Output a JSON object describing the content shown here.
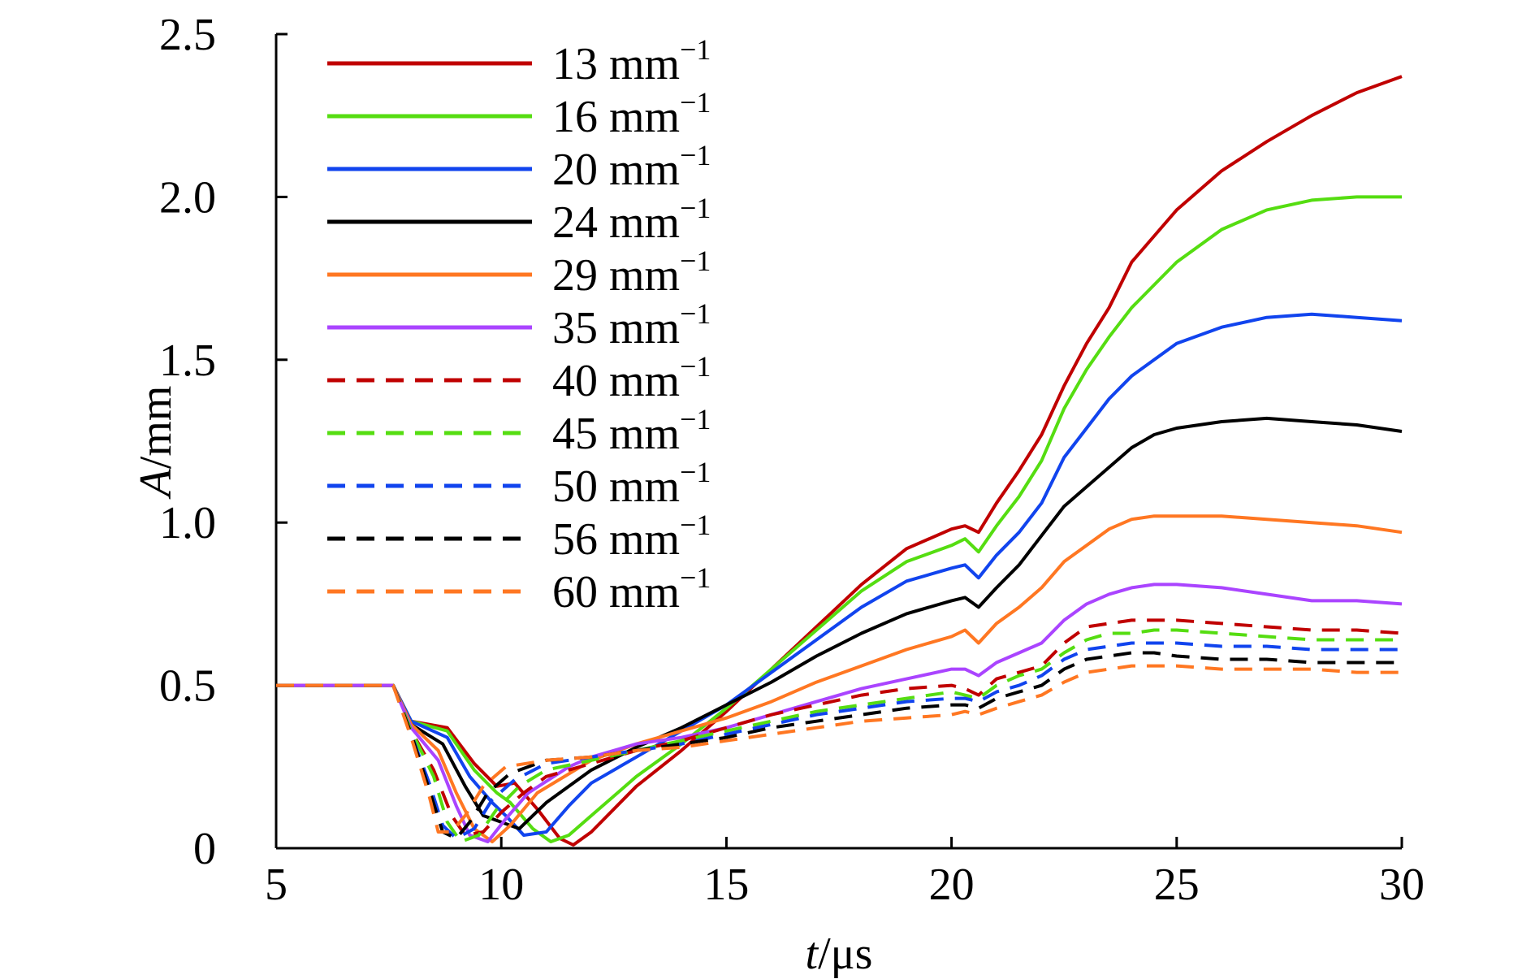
{
  "chart_data": {
    "type": "line",
    "xlabel": {
      "var": "t",
      "unit": "/μs"
    },
    "ylabel": {
      "var": "A",
      "unit": "/mm"
    },
    "xlim": [
      5,
      30
    ],
    "ylim": [
      0,
      2.5
    ],
    "xticks": [
      "5",
      "10",
      "15",
      "20",
      "25",
      "30"
    ],
    "yticks": [
      "0",
      "0.5",
      "1.0",
      "1.5",
      "2.0",
      "2.5"
    ],
    "legend_position": "top-left",
    "grid": false,
    "series": [
      {
        "name": "13 mm",
        "exp": "−1",
        "color": "#c00000",
        "dash": "solid",
        "x": [
          5,
          7.6,
          8,
          8.8,
          9.4,
          9.9,
          10.3,
          10.8,
          11.3,
          11.6,
          12,
          13,
          14,
          15,
          16,
          17,
          18,
          19,
          20,
          20.3,
          20.6,
          21,
          21.5,
          22,
          22.5,
          23,
          23.5,
          24,
          24.5,
          25,
          26,
          27,
          28,
          29,
          30
        ],
        "y": [
          0.5,
          0.5,
          0.39,
          0.37,
          0.26,
          0.19,
          0.2,
          0.12,
          0.03,
          0.01,
          0.05,
          0.19,
          0.3,
          0.42,
          0.55,
          0.68,
          0.81,
          0.92,
          0.98,
          0.99,
          0.97,
          1.06,
          1.16,
          1.27,
          1.42,
          1.55,
          1.66,
          1.8,
          1.88,
          1.96,
          2.08,
          2.17,
          2.25,
          2.32,
          2.37
        ]
      },
      {
        "name": "16 mm",
        "exp": "−1",
        "color": "#55dd11",
        "dash": "solid",
        "x": [
          5,
          7.6,
          8,
          8.8,
          9.4,
          9.9,
          10.2,
          10.7,
          11.1,
          11.5,
          12,
          13,
          14,
          15,
          16,
          17,
          18,
          19,
          20,
          20.3,
          20.6,
          21,
          21.5,
          22,
          22.5,
          23,
          23.5,
          24,
          24.5,
          25,
          26,
          27,
          28,
          29,
          30
        ],
        "y": [
          0.5,
          0.5,
          0.39,
          0.36,
          0.24,
          0.17,
          0.14,
          0.06,
          0.02,
          0.04,
          0.1,
          0.22,
          0.32,
          0.43,
          0.55,
          0.67,
          0.79,
          0.88,
          0.93,
          0.95,
          0.91,
          0.99,
          1.08,
          1.19,
          1.35,
          1.47,
          1.57,
          1.66,
          1.73,
          1.8,
          1.9,
          1.96,
          1.99,
          2.0,
          2.0
        ]
      },
      {
        "name": "20 mm",
        "exp": "−1",
        "color": "#1144ee",
        "dash": "solid",
        "x": [
          5,
          7.6,
          8,
          8.8,
          9.3,
          9.8,
          10.1,
          10.5,
          11,
          11.5,
          12,
          13,
          14,
          15,
          16,
          17,
          18,
          19,
          20,
          20.3,
          20.6,
          21,
          21.5,
          22,
          22.5,
          23,
          23.5,
          24,
          24.5,
          25,
          26,
          27,
          28,
          29,
          30
        ],
        "y": [
          0.5,
          0.5,
          0.39,
          0.34,
          0.22,
          0.14,
          0.1,
          0.04,
          0.05,
          0.13,
          0.2,
          0.28,
          0.36,
          0.44,
          0.54,
          0.64,
          0.74,
          0.82,
          0.86,
          0.87,
          0.83,
          0.9,
          0.97,
          1.06,
          1.2,
          1.29,
          1.38,
          1.45,
          1.5,
          1.55,
          1.6,
          1.63,
          1.64,
          1.63,
          1.62
        ]
      },
      {
        "name": "24 mm",
        "exp": "−1",
        "color": "#000000",
        "dash": "solid",
        "x": [
          5,
          7.6,
          8,
          8.7,
          9.2,
          9.6,
          10,
          10.4,
          11,
          12,
          13,
          14,
          15,
          16,
          17,
          18,
          19,
          20,
          20.3,
          20.6,
          21,
          21.5,
          22,
          22.5,
          23,
          23.5,
          24,
          24.5,
          25,
          26,
          27,
          28,
          29,
          30
        ],
        "y": [
          0.5,
          0.5,
          0.38,
          0.32,
          0.19,
          0.1,
          0.08,
          0.06,
          0.14,
          0.24,
          0.31,
          0.37,
          0.44,
          0.51,
          0.59,
          0.66,
          0.72,
          0.76,
          0.77,
          0.74,
          0.8,
          0.87,
          0.96,
          1.05,
          1.11,
          1.17,
          1.23,
          1.27,
          1.29,
          1.31,
          1.32,
          1.31,
          1.3,
          1.28
        ]
      },
      {
        "name": "29 mm",
        "exp": "−1",
        "color": "#ff7722",
        "dash": "solid",
        "x": [
          5,
          7.6,
          8,
          8.6,
          9,
          9.4,
          9.8,
          10.2,
          10.8,
          12,
          13,
          14,
          15,
          16,
          17,
          18,
          19,
          20,
          20.3,
          20.6,
          21,
          21.5,
          22,
          22.5,
          23,
          23.5,
          24,
          24.5,
          25,
          26,
          27,
          28,
          29,
          30
        ],
        "y": [
          0.5,
          0.5,
          0.38,
          0.3,
          0.17,
          0.06,
          0.02,
          0.07,
          0.17,
          0.27,
          0.32,
          0.36,
          0.4,
          0.45,
          0.51,
          0.56,
          0.61,
          0.65,
          0.67,
          0.63,
          0.69,
          0.74,
          0.8,
          0.88,
          0.93,
          0.98,
          1.01,
          1.02,
          1.02,
          1.02,
          1.01,
          1.0,
          0.99,
          0.97
        ]
      },
      {
        "name": "35 mm",
        "exp": "−1",
        "color": "#aa44ff",
        "dash": "solid",
        "x": [
          5,
          7.6,
          8,
          8.6,
          9,
          9.3,
          9.7,
          10.1,
          10.6,
          11.5,
          12,
          13,
          14,
          15,
          16,
          17,
          18,
          19,
          20,
          20.3,
          20.6,
          21,
          21.5,
          22,
          22.5,
          23,
          23.5,
          24,
          24.5,
          25,
          26,
          27,
          28,
          29,
          30
        ],
        "y": [
          0.5,
          0.5,
          0.37,
          0.27,
          0.13,
          0.04,
          0.02,
          0.09,
          0.17,
          0.25,
          0.28,
          0.32,
          0.34,
          0.37,
          0.41,
          0.45,
          0.49,
          0.52,
          0.55,
          0.55,
          0.53,
          0.57,
          0.6,
          0.63,
          0.7,
          0.75,
          0.78,
          0.8,
          0.81,
          0.81,
          0.8,
          0.78,
          0.76,
          0.76,
          0.75
        ]
      },
      {
        "name": "40 mm",
        "exp": "−1",
        "color": "#c00000",
        "dash": "dashed",
        "x": [
          5,
          7.6,
          8,
          8.5,
          8.9,
          9.2,
          9.6,
          10,
          10.5,
          11,
          12,
          13,
          14,
          15,
          16,
          17,
          18,
          19,
          20,
          20.3,
          20.6,
          21,
          21.5,
          22,
          22.5,
          23,
          23.5,
          24,
          24.5,
          25,
          26,
          27,
          28,
          29,
          30
        ],
        "y": [
          0.5,
          0.5,
          0.36,
          0.24,
          0.1,
          0.04,
          0.05,
          0.11,
          0.17,
          0.22,
          0.26,
          0.3,
          0.33,
          0.37,
          0.41,
          0.44,
          0.47,
          0.49,
          0.5,
          0.49,
          0.47,
          0.52,
          0.54,
          0.56,
          0.63,
          0.68,
          0.69,
          0.7,
          0.7,
          0.7,
          0.69,
          0.68,
          0.67,
          0.67,
          0.66
        ]
      },
      {
        "name": "45 mm",
        "exp": "−1",
        "color": "#55dd11",
        "dash": "dashed",
        "x": [
          5,
          7.6,
          8,
          8.5,
          8.8,
          9.1,
          9.5,
          9.9,
          10.4,
          11,
          12,
          13,
          14,
          15,
          16,
          17,
          18,
          19,
          20,
          20.3,
          20.6,
          21,
          21.5,
          22,
          22.5,
          23,
          23.5,
          24,
          24.5,
          25,
          26,
          27,
          28,
          29,
          30
        ],
        "y": [
          0.5,
          0.5,
          0.36,
          0.22,
          0.08,
          0.02,
          0.04,
          0.12,
          0.19,
          0.24,
          0.27,
          0.3,
          0.33,
          0.36,
          0.39,
          0.42,
          0.44,
          0.46,
          0.48,
          0.47,
          0.46,
          0.5,
          0.53,
          0.55,
          0.6,
          0.64,
          0.66,
          0.66,
          0.67,
          0.67,
          0.66,
          0.65,
          0.64,
          0.64,
          0.64
        ]
      },
      {
        "name": "50 mm",
        "exp": "−1",
        "color": "#1144ee",
        "dash": "dashed",
        "x": [
          5,
          7.6,
          8,
          8.4,
          8.7,
          9,
          9.4,
          9.8,
          10.3,
          11,
          12,
          13,
          14,
          15,
          16,
          17,
          18,
          19,
          20,
          20.3,
          20.6,
          21,
          21.5,
          22,
          22.5,
          23,
          23.5,
          24,
          24.5,
          25,
          26,
          27,
          28,
          29,
          30
        ],
        "y": [
          0.5,
          0.5,
          0.35,
          0.2,
          0.07,
          0.03,
          0.06,
          0.15,
          0.21,
          0.26,
          0.28,
          0.3,
          0.32,
          0.35,
          0.38,
          0.41,
          0.43,
          0.45,
          0.46,
          0.46,
          0.45,
          0.48,
          0.5,
          0.53,
          0.58,
          0.61,
          0.62,
          0.63,
          0.63,
          0.63,
          0.62,
          0.62,
          0.61,
          0.61,
          0.61
        ]
      },
      {
        "name": "56 mm",
        "exp": "−1",
        "color": "#000000",
        "dash": "dashed",
        "x": [
          5,
          7.6,
          8,
          8.4,
          8.7,
          9,
          9.3,
          9.7,
          10.2,
          11,
          12,
          13,
          14,
          15,
          16,
          17,
          18,
          19,
          20,
          20.3,
          20.6,
          21,
          21.5,
          22,
          22.5,
          23,
          23.5,
          24,
          24.5,
          25,
          26,
          27,
          28,
          29,
          30
        ],
        "y": [
          0.5,
          0.5,
          0.35,
          0.18,
          0.05,
          0.03,
          0.08,
          0.17,
          0.23,
          0.27,
          0.28,
          0.3,
          0.32,
          0.34,
          0.37,
          0.39,
          0.41,
          0.43,
          0.44,
          0.44,
          0.43,
          0.46,
          0.48,
          0.5,
          0.55,
          0.58,
          0.59,
          0.6,
          0.6,
          0.59,
          0.58,
          0.58,
          0.57,
          0.57,
          0.57
        ]
      },
      {
        "name": "60 mm",
        "exp": "−1",
        "color": "#ff7722",
        "dash": "dashed",
        "x": [
          5,
          7.6,
          8,
          8.4,
          8.6,
          8.9,
          9.2,
          9.6,
          10.1,
          11,
          12,
          13,
          14,
          15,
          16,
          17,
          18,
          19,
          20,
          20.3,
          20.6,
          21,
          21.5,
          22,
          22.5,
          23,
          23.5,
          24,
          24.5,
          25,
          26,
          27,
          28,
          29,
          30
        ],
        "y": [
          0.5,
          0.5,
          0.34,
          0.16,
          0.05,
          0.05,
          0.1,
          0.19,
          0.25,
          0.27,
          0.28,
          0.3,
          0.31,
          0.33,
          0.35,
          0.37,
          0.39,
          0.4,
          0.41,
          0.42,
          0.41,
          0.43,
          0.45,
          0.47,
          0.51,
          0.54,
          0.55,
          0.56,
          0.56,
          0.56,
          0.55,
          0.55,
          0.55,
          0.54,
          0.54
        ]
      }
    ]
  }
}
